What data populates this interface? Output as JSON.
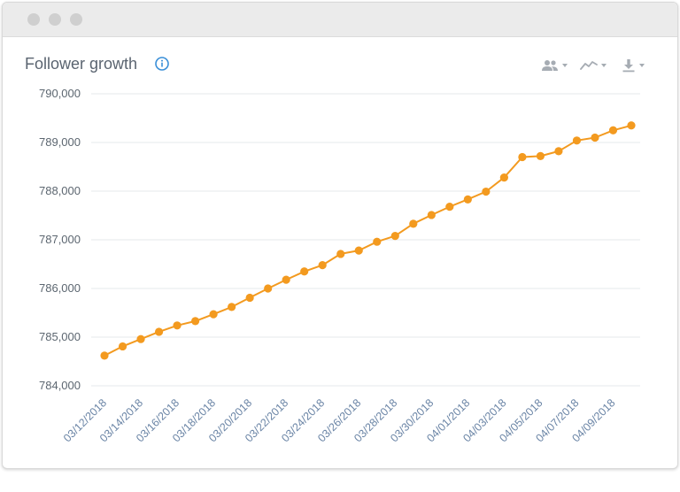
{
  "window": {
    "title_dots": [
      "close",
      "minimize",
      "maximize"
    ]
  },
  "panel": {
    "title": "Follower growth",
    "icons": {
      "info": "info-circle-icon",
      "audience": "people-icon",
      "chart_type": "line-chart-icon",
      "download": "download-icon"
    }
  },
  "colors": {
    "series": "#f39a1f",
    "info_icon": "#3a8fd8",
    "toolbar_icon": "#a6acb3"
  },
  "chart_data": {
    "type": "line",
    "title": "Follower growth",
    "xlabel": "",
    "ylabel": "",
    "ylim": [
      784000,
      790000
    ],
    "yticks": [
      790000,
      789000,
      788000,
      787000,
      786000,
      785000,
      784000
    ],
    "ytick_labels": [
      "790,000",
      "789,000",
      "788,000",
      "787,000",
      "786,000",
      "785,000",
      "784,000"
    ],
    "grid": true,
    "x": [
      "03/12/2018",
      "03/13/2018",
      "03/14/2018",
      "03/15/2018",
      "03/16/2018",
      "03/17/2018",
      "03/18/2018",
      "03/19/2018",
      "03/20/2018",
      "03/21/2018",
      "03/22/2018",
      "03/23/2018",
      "03/24/2018",
      "03/25/2018",
      "03/26/2018",
      "03/27/2018",
      "03/28/2018",
      "03/29/2018",
      "03/30/2018",
      "03/31/2018",
      "04/01/2018",
      "04/02/2018",
      "04/03/2018",
      "04/04/2018",
      "04/05/2018",
      "04/06/2018",
      "04/07/2018",
      "04/08/2018",
      "04/09/2018",
      "04/10/2018"
    ],
    "xtick_labels": [
      "03/12/2018",
      "03/14/2018",
      "03/16/2018",
      "03/18/2018",
      "03/20/2018",
      "03/22/2018",
      "03/24/2018",
      "03/26/2018",
      "03/28/2018",
      "03/30/2018",
      "04/01/2018",
      "04/03/2018",
      "04/05/2018",
      "04/07/2018",
      "04/09/2018"
    ],
    "series": [
      {
        "values": [
          784620,
          784810,
          784960,
          785110,
          785240,
          785330,
          785470,
          785620,
          785810,
          786000,
          786180,
          786350,
          786480,
          786710,
          786780,
          786960,
          787080,
          787330,
          787510,
          787680,
          787830,
          787990,
          788280,
          788700,
          788720,
          788820,
          789040,
          789100,
          789250,
          789350
        ]
      }
    ]
  }
}
